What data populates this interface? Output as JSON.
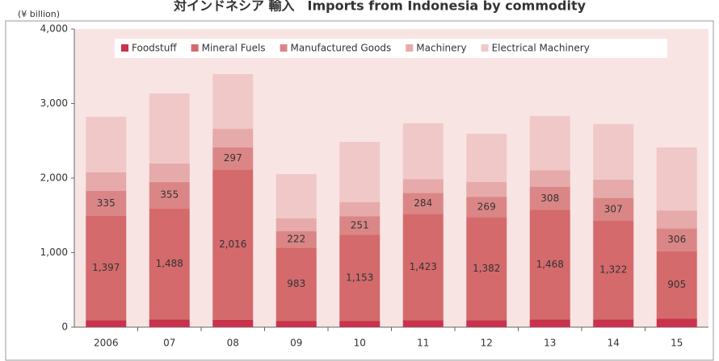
{
  "chart_data": {
    "type": "stacked_bar",
    "title": "対インドネシア 輸入　Imports from Indonesia by commodity",
    "y_label": "(¥ billion)",
    "categories": [
      "2006",
      "07",
      "08",
      "09",
      "10",
      "11",
      "12",
      "13",
      "14",
      "15"
    ],
    "series": [
      {
        "name": "Foodstuff",
        "color": "#c8324c",
        "values": [
          95,
          105,
          100,
          85,
          85,
          95,
          95,
          105,
          105,
          115
        ]
      },
      {
        "name": "Mineral Fuels",
        "color": "#d46a6c",
        "values": [
          1397,
          1488,
          2016,
          983,
          1153,
          1423,
          1382,
          1468,
          1322,
          905
        ],
        "value_labels": [
          "1,397",
          "1,488",
          "2,016",
          "983",
          "1,153",
          "1,423",
          "1,382",
          "1,468",
          "1,322",
          "905"
        ]
      },
      {
        "name": "Manufactured Goods",
        "color": "#db8686",
        "values": [
          335,
          355,
          297,
          222,
          251,
          284,
          269,
          308,
          307,
          306
        ]
      },
      {
        "name": "Machinery",
        "color": "#e6aaaa",
        "values": [
          250,
          250,
          250,
          170,
          190,
          185,
          200,
          225,
          245,
          240
        ]
      },
      {
        "name": "Electrical Machinery",
        "color": "#f0c8c8",
        "values": [
          746,
          937,
          732,
          594,
          807,
          748,
          649,
          726,
          745,
          845
        ]
      }
    ],
    "labeled_series": [
      1,
      2
    ],
    "ylim": [
      0,
      4000
    ],
    "yticks": [
      0,
      {
        "value": 1000,
        "label": "1,000"
      },
      {
        "value": 2000,
        "label": "2,000"
      },
      {
        "value": 3000,
        "label": "3,000"
      },
      {
        "value": 4000,
        "label": "4,000"
      }
    ],
    "grid": false,
    "legend": "top"
  }
}
